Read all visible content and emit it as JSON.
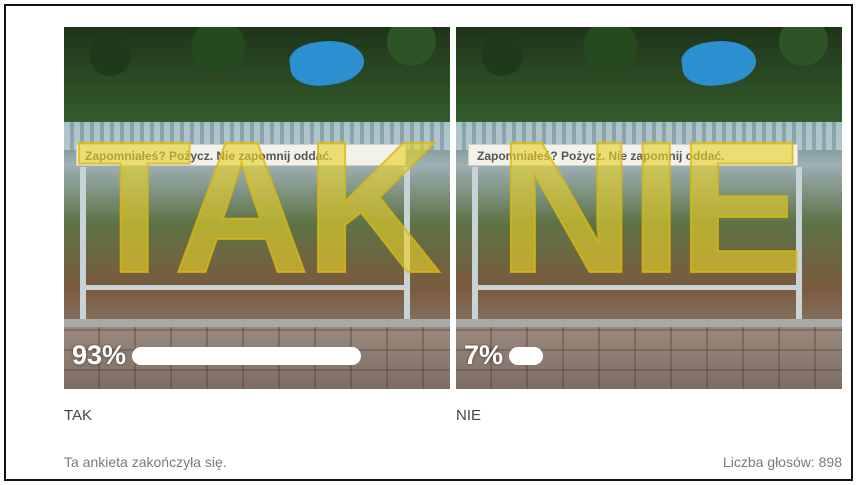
{
  "poll": {
    "options": [
      {
        "label": "TAK",
        "overlay_text": "TAK",
        "sign_text": "Zapomniałeś? Pożycz. Nie zapomnij oddać.",
        "percent_text": "93%",
        "percent": 93
      },
      {
        "label": "NIE",
        "overlay_text": "NIE",
        "sign_text": "Zapomniałeś? Pożycz. Nie zapomnij oddać.",
        "percent_text": "7%",
        "percent": 7
      }
    ],
    "status_text": "Ta ankieta zakończyła się.",
    "votes_text": "Liczba głosów: 898"
  },
  "colors": {
    "bar": "#ffffff",
    "overlay_letters": "#e8d028",
    "text_primary": "#444444",
    "text_muted": "#7a7a7a",
    "frame_border": "#111111"
  }
}
